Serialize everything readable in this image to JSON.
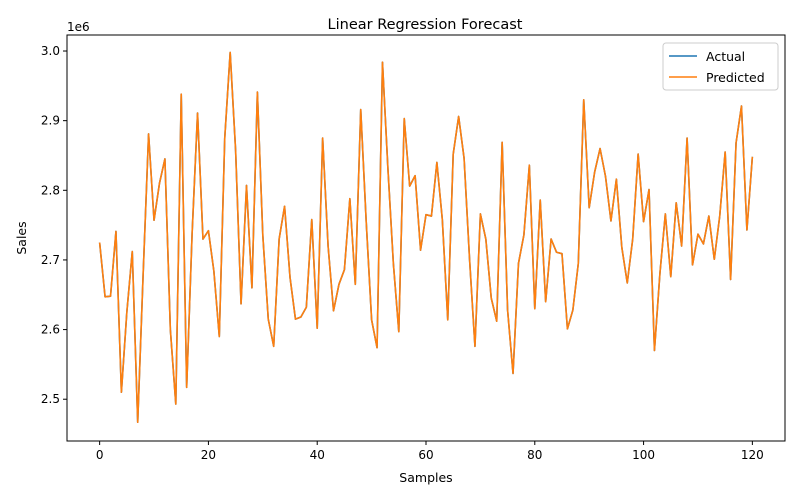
{
  "chart_data": {
    "type": "line",
    "title": "Linear Regression Forecast",
    "xlabel": "Samples",
    "ylabel": "Sales",
    "y_offset_label": "1e6",
    "xlim": [
      -6,
      126
    ],
    "ylim": [
      2.44,
      3.023
    ],
    "x_ticks": [
      0,
      20,
      40,
      60,
      80,
      100,
      120
    ],
    "y_ticks": [
      2.5,
      2.6,
      2.7,
      2.8,
      2.9,
      3.0
    ],
    "y_tick_labels": [
      "2.5",
      "2.6",
      "2.7",
      "2.8",
      "2.9",
      "3.0"
    ],
    "grid": false,
    "legend": "top-right",
    "colors": {
      "actual": "#1f77b4",
      "predicted": "#ff7f0e"
    },
    "series": [
      {
        "name": "Actual",
        "values": [
          2.725,
          2.647,
          2.648,
          2.741,
          2.51,
          2.625,
          2.712,
          2.467,
          2.68,
          2.881,
          2.757,
          2.81,
          2.845,
          2.6,
          2.493,
          2.938,
          2.517,
          2.738,
          2.911,
          2.73,
          2.742,
          2.684,
          2.59,
          2.875,
          2.998,
          2.857,
          2.637,
          2.807,
          2.66,
          2.941,
          2.735,
          2.615,
          2.576,
          2.73,
          2.777,
          2.675,
          2.615,
          2.618,
          2.632,
          2.758,
          2.602,
          2.875,
          2.72,
          2.627,
          2.665,
          2.686,
          2.788,
          2.665,
          2.916,
          2.756,
          2.614,
          2.574,
          2.984,
          2.831,
          2.695,
          2.597,
          2.903,
          2.806,
          2.821,
          2.714,
          2.765,
          2.763,
          2.84,
          2.758,
          2.614,
          2.852,
          2.906,
          2.846,
          2.702,
          2.576,
          2.766,
          2.73,
          2.645,
          2.612,
          2.869,
          2.628,
          2.537,
          2.695,
          2.736,
          2.836,
          2.63,
          2.786,
          2.64,
          2.73,
          2.711,
          2.709,
          2.601,
          2.628,
          2.695,
          2.93,
          2.775,
          2.826,
          2.86,
          2.82,
          2.756,
          2.816,
          2.718,
          2.667,
          2.73,
          2.852,
          2.755,
          2.801,
          2.57,
          2.68,
          2.766,
          2.676,
          2.782,
          2.72,
          2.875,
          2.693,
          2.737,
          2.723,
          2.763,
          2.701,
          2.763,
          2.855,
          2.672,
          2.868,
          2.921,
          2.743,
          2.848
        ]
      },
      {
        "name": "Predicted",
        "values": [
          2.725,
          2.647,
          2.648,
          2.741,
          2.51,
          2.625,
          2.712,
          2.467,
          2.68,
          2.881,
          2.757,
          2.81,
          2.845,
          2.6,
          2.493,
          2.938,
          2.517,
          2.738,
          2.911,
          2.73,
          2.742,
          2.684,
          2.59,
          2.875,
          2.998,
          2.857,
          2.637,
          2.807,
          2.66,
          2.941,
          2.735,
          2.615,
          2.576,
          2.73,
          2.777,
          2.675,
          2.615,
          2.618,
          2.632,
          2.758,
          2.602,
          2.875,
          2.72,
          2.627,
          2.665,
          2.686,
          2.788,
          2.665,
          2.916,
          2.756,
          2.614,
          2.574,
          2.984,
          2.831,
          2.695,
          2.597,
          2.903,
          2.806,
          2.821,
          2.714,
          2.765,
          2.763,
          2.84,
          2.758,
          2.614,
          2.852,
          2.906,
          2.846,
          2.702,
          2.576,
          2.766,
          2.73,
          2.645,
          2.612,
          2.869,
          2.628,
          2.537,
          2.695,
          2.736,
          2.836,
          2.63,
          2.786,
          2.64,
          2.73,
          2.711,
          2.709,
          2.601,
          2.628,
          2.695,
          2.93,
          2.775,
          2.826,
          2.86,
          2.82,
          2.756,
          2.816,
          2.718,
          2.667,
          2.73,
          2.852,
          2.755,
          2.801,
          2.57,
          2.68,
          2.766,
          2.676,
          2.782,
          2.72,
          2.875,
          2.693,
          2.737,
          2.723,
          2.763,
          2.701,
          2.763,
          2.855,
          2.672,
          2.868,
          2.921,
          2.743,
          2.848
        ]
      }
    ]
  }
}
